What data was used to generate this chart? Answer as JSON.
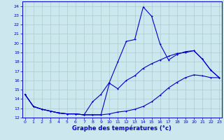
{
  "xlabel": "Graphe des températures (°c)",
  "background_color": "#cce8ee",
  "grid_color": "#aacccc",
  "line_color": "#0000cc",
  "xlim": [
    -0.3,
    23.3
  ],
  "ylim": [
    12,
    24.5
  ],
  "yticks": [
    12,
    13,
    14,
    15,
    16,
    17,
    18,
    19,
    20,
    21,
    22,
    23,
    24
  ],
  "xticks": [
    0,
    1,
    2,
    3,
    4,
    5,
    6,
    7,
    8,
    9,
    10,
    11,
    12,
    13,
    14,
    15,
    16,
    17,
    18,
    19,
    20,
    21,
    22,
    23
  ],
  "series1_x": [
    0,
    1,
    2,
    3,
    4,
    5,
    6,
    7,
    8,
    9,
    10,
    11,
    12,
    13,
    14,
    15,
    16,
    17,
    18,
    19,
    20,
    21,
    22,
    23
  ],
  "series1_y": [
    14.5,
    13.2,
    12.9,
    12.7,
    12.5,
    12.4,
    12.4,
    12.3,
    13.7,
    14.5,
    15.8,
    18.0,
    20.2,
    20.4,
    23.9,
    22.9,
    19.9,
    18.2,
    18.8,
    19.1,
    19.2,
    18.3,
    17.1,
    16.3
  ],
  "series2_x": [
    0,
    1,
    2,
    3,
    4,
    5,
    6,
    7,
    8,
    9,
    10,
    11,
    12,
    13,
    14,
    15,
    16,
    17,
    18,
    19,
    20,
    21,
    22,
    23
  ],
  "series2_y": [
    14.5,
    13.2,
    12.9,
    12.7,
    12.5,
    12.4,
    12.4,
    12.3,
    12.3,
    12.3,
    12.4,
    12.6,
    12.7,
    12.9,
    13.2,
    13.7,
    14.4,
    15.2,
    15.8,
    16.3,
    16.6,
    16.5,
    16.3,
    16.3
  ],
  "series3_x": [
    0,
    1,
    2,
    3,
    4,
    5,
    6,
    7,
    8,
    9,
    10,
    11,
    12,
    13,
    14,
    15,
    16,
    17,
    18,
    19,
    20,
    21,
    22,
    23
  ],
  "series3_y": [
    14.5,
    13.2,
    12.9,
    12.7,
    12.5,
    12.4,
    12.4,
    12.3,
    12.3,
    12.3,
    15.7,
    15.1,
    16.0,
    16.5,
    17.3,
    17.8,
    18.2,
    18.6,
    18.9,
    19.0,
    19.2,
    18.3,
    17.1,
    16.3
  ]
}
